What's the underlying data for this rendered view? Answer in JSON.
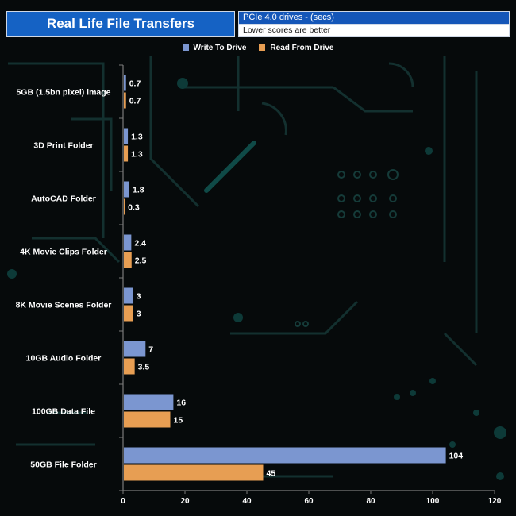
{
  "header": {
    "title": "Real Life File Transfers",
    "subtitle": "PCIe 4.0 drives - (secs)",
    "note": "Lower scores are better"
  },
  "colors": {
    "write": "#7b96d0",
    "read": "#e79e53",
    "title_bg": "#1562c4",
    "text": "#ffffff"
  },
  "chart_data": {
    "type": "bar",
    "orientation": "horizontal",
    "title": "Real Life File Transfers",
    "subtitle": "PCIe 4.0 drives - (secs)",
    "categories": [
      "5GB (1.5bn pixel) image",
      "3D Print Folder",
      "AutoCAD Folder",
      "4K Movie Clips Folder",
      "8K Movie Scenes Folder",
      "10GB Audio Folder",
      "100GB Data File",
      "50GB File Folder"
    ],
    "series": [
      {
        "name": "Write To  Drive",
        "values": [
          0.7,
          1.3,
          1.8,
          2.4,
          3,
          7,
          16,
          104
        ]
      },
      {
        "name": "Read From  Drive",
        "values": [
          0.7,
          1.3,
          0.3,
          2.5,
          3,
          3.5,
          15,
          45
        ]
      }
    ],
    "xlim": [
      0,
      120
    ],
    "xticks": [
      0,
      20,
      40,
      60,
      80,
      100,
      120
    ],
    "grid": false,
    "legend": "top-center"
  }
}
